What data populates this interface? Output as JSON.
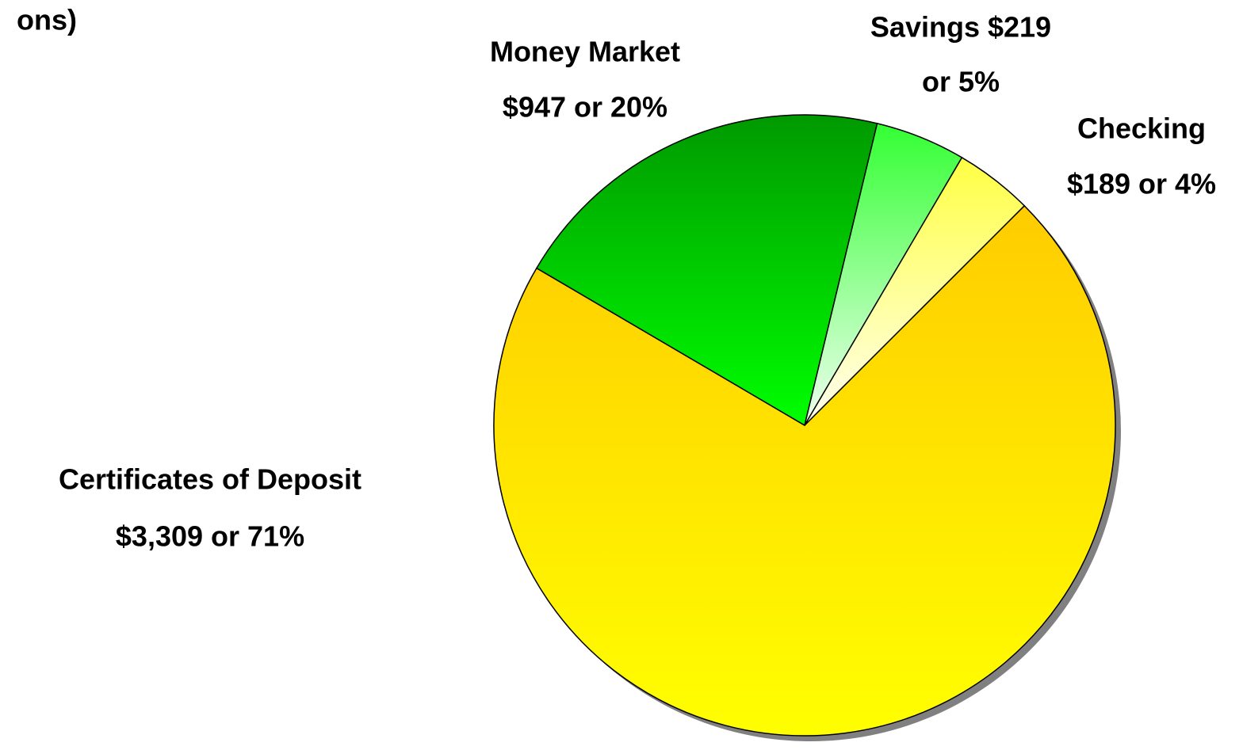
{
  "chart_data": {
    "type": "pie",
    "title": "ons)",
    "labels": [
      [
        "Certificates of Deposit",
        "$3,309 or 71%"
      ],
      [
        "Money Market",
        "$947 or 20%"
      ],
      [
        "Savings $219",
        "or 5%"
      ],
      [
        "Checking",
        "$189 or 4%"
      ]
    ],
    "values": [
      3309,
      947,
      219,
      189
    ],
    "colors": [
      [
        "#ffcc00",
        "#ffff00"
      ],
      [
        "#009900",
        "#00ff00"
      ],
      [
        "#33ff33",
        "#f0fff0"
      ],
      [
        "#ffff44",
        "#fffff0"
      ]
    ]
  }
}
